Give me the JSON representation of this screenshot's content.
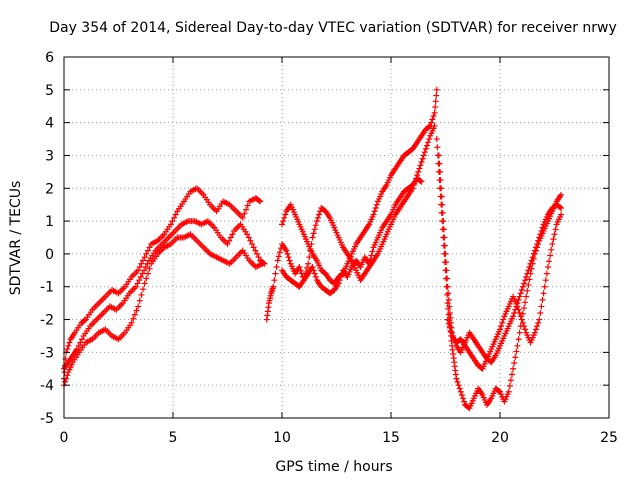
{
  "chart_data": {
    "type": "scatter",
    "title": "Day 354 of 2014, Sidereal Day-to-day VTEC variation (SDTVAR) for receiver nrwy",
    "xlabel": "GPS time / hours",
    "ylabel": "SDTVAR / TECUs",
    "xlim": [
      0,
      25
    ],
    "ylim": [
      -5,
      6
    ],
    "xticks": [
      "0",
      "5",
      "10",
      "15",
      "20",
      "25"
    ],
    "yticks": [
      "-5",
      "-4",
      "-3",
      "-2",
      "-1",
      "0",
      "1",
      "2",
      "3",
      "4",
      "5",
      "6"
    ],
    "grid": true,
    "marker": "+",
    "color": "#ff0000",
    "series": [
      {
        "points": [
          [
            0.0,
            -3.8
          ],
          [
            0.1,
            -3.0
          ],
          [
            0.3,
            -2.6
          ],
          [
            0.5,
            -2.4
          ],
          [
            0.8,
            -2.1
          ],
          [
            1.0,
            -2.0
          ],
          [
            1.3,
            -1.7
          ],
          [
            1.6,
            -1.5
          ],
          [
            1.9,
            -1.3
          ],
          [
            2.2,
            -1.1
          ],
          [
            2.5,
            -1.2
          ],
          [
            2.8,
            -1.0
          ],
          [
            3.1,
            -0.7
          ],
          [
            3.4,
            -0.5
          ],
          [
            3.7,
            -0.1
          ],
          [
            4.0,
            0.3
          ],
          [
            4.3,
            0.4
          ],
          [
            4.6,
            0.6
          ],
          [
            4.9,
            0.9
          ],
          [
            5.2,
            1.3
          ],
          [
            5.5,
            1.6
          ],
          [
            5.8,
            1.9
          ],
          [
            6.1,
            2.0
          ],
          [
            6.4,
            1.8
          ],
          [
            6.7,
            1.5
          ],
          [
            7.0,
            1.3
          ],
          [
            7.3,
            1.6
          ],
          [
            7.6,
            1.5
          ],
          [
            7.9,
            1.3
          ],
          [
            8.2,
            1.1
          ],
          [
            8.5,
            1.6
          ],
          [
            8.8,
            1.7
          ],
          [
            9.0,
            1.6
          ]
        ]
      },
      {
        "points": [
          [
            0.0,
            -3.5
          ],
          [
            0.2,
            -3.3
          ],
          [
            0.4,
            -3.1
          ],
          [
            0.6,
            -2.9
          ],
          [
            0.9,
            -2.5
          ],
          [
            1.2,
            -2.2
          ],
          [
            1.5,
            -2.0
          ],
          [
            1.8,
            -1.8
          ],
          [
            2.1,
            -1.6
          ],
          [
            2.4,
            -1.7
          ],
          [
            2.7,
            -1.5
          ],
          [
            3.0,
            -1.2
          ],
          [
            3.3,
            -1.0
          ],
          [
            3.6,
            -0.6
          ],
          [
            3.9,
            -0.2
          ],
          [
            4.2,
            0.1
          ],
          [
            4.5,
            0.3
          ],
          [
            4.8,
            0.5
          ],
          [
            5.1,
            0.7
          ],
          [
            5.4,
            0.9
          ],
          [
            5.7,
            1.0
          ],
          [
            6.0,
            1.0
          ],
          [
            6.3,
            0.9
          ],
          [
            6.6,
            1.0
          ],
          [
            6.9,
            0.8
          ],
          [
            7.2,
            0.5
          ],
          [
            7.5,
            0.3
          ],
          [
            7.8,
            0.7
          ],
          [
            8.1,
            0.9
          ],
          [
            8.4,
            0.6
          ],
          [
            8.7,
            0.2
          ],
          [
            9.0,
            -0.2
          ],
          [
            9.2,
            -0.3
          ]
        ]
      },
      {
        "points": [
          [
            0.0,
            -4.0
          ],
          [
            0.2,
            -3.6
          ],
          [
            0.4,
            -3.3
          ],
          [
            0.7,
            -3.0
          ],
          [
            1.0,
            -2.7
          ],
          [
            1.3,
            -2.6
          ],
          [
            1.6,
            -2.4
          ],
          [
            1.9,
            -2.3
          ],
          [
            2.2,
            -2.5
          ],
          [
            2.5,
            -2.6
          ],
          [
            2.8,
            -2.4
          ],
          [
            3.1,
            -2.1
          ],
          [
            3.4,
            -1.6
          ],
          [
            3.7,
            -0.9
          ],
          [
            4.0,
            -0.3
          ],
          [
            4.3,
            0.0
          ],
          [
            4.6,
            0.2
          ],
          [
            4.9,
            0.3
          ],
          [
            5.2,
            0.5
          ],
          [
            5.5,
            0.5
          ],
          [
            5.8,
            0.6
          ],
          [
            6.1,
            0.4
          ],
          [
            6.4,
            0.2
          ],
          [
            6.7,
            0.0
          ],
          [
            7.0,
            -0.1
          ],
          [
            7.3,
            -0.2
          ],
          [
            7.6,
            -0.3
          ],
          [
            7.9,
            -0.1
          ],
          [
            8.2,
            0.1
          ],
          [
            8.5,
            -0.2
          ],
          [
            8.8,
            -0.4
          ],
          [
            9.1,
            -0.3
          ]
        ]
      },
      {
        "points": [
          [
            9.3,
            -2.0
          ],
          [
            9.4,
            -1.5
          ],
          [
            9.5,
            -1.2
          ],
          [
            9.6,
            -1.0
          ],
          [
            9.8,
            -0.2
          ],
          [
            10.0,
            0.3
          ],
          [
            10.2,
            0.1
          ],
          [
            10.4,
            -0.3
          ],
          [
            10.6,
            -0.6
          ],
          [
            10.8,
            -0.4
          ],
          [
            11.0,
            -0.8
          ],
          [
            11.2,
            -0.6
          ],
          [
            11.4,
            -0.4
          ],
          [
            11.6,
            -0.8
          ],
          [
            11.8,
            -1.0
          ],
          [
            12.0,
            -1.1
          ],
          [
            12.2,
            -1.2
          ],
          [
            12.4,
            -1.1
          ],
          [
            12.6,
            -0.9
          ],
          [
            12.8,
            -0.5
          ],
          [
            13.0,
            -0.7
          ],
          [
            13.2,
            -0.4
          ],
          [
            13.4,
            -0.2
          ],
          [
            13.6,
            -0.4
          ],
          [
            13.8,
            -0.1
          ],
          [
            14.0,
            -0.3
          ],
          [
            14.2,
            0.2
          ],
          [
            14.4,
            0.5
          ],
          [
            14.6,
            0.8
          ],
          [
            14.8,
            1.0
          ],
          [
            15.0,
            1.2
          ],
          [
            15.2,
            1.5
          ],
          [
            15.4,
            1.7
          ],
          [
            15.6,
            1.9
          ],
          [
            15.8,
            2.0
          ],
          [
            16.0,
            2.1
          ],
          [
            16.2,
            2.3
          ],
          [
            16.4,
            2.2
          ]
        ]
      },
      {
        "points": [
          [
            10.0,
            0.9
          ],
          [
            10.2,
            1.3
          ],
          [
            10.4,
            1.5
          ],
          [
            10.6,
            1.2
          ],
          [
            10.8,
            0.9
          ],
          [
            11.0,
            0.6
          ],
          [
            11.2,
            0.3
          ],
          [
            11.4,
            0.0
          ],
          [
            11.6,
            -0.2
          ],
          [
            11.8,
            -0.5
          ],
          [
            12.0,
            -0.6
          ],
          [
            12.2,
            -0.8
          ],
          [
            12.4,
            -0.9
          ],
          [
            12.6,
            -0.7
          ],
          [
            12.8,
            -0.6
          ],
          [
            13.0,
            -0.3
          ],
          [
            13.2,
            0.0
          ],
          [
            13.4,
            0.3
          ],
          [
            13.6,
            0.5
          ],
          [
            13.8,
            0.7
          ],
          [
            14.0,
            0.9
          ],
          [
            14.2,
            1.2
          ],
          [
            14.4,
            1.6
          ],
          [
            14.6,
            1.9
          ],
          [
            14.8,
            2.1
          ],
          [
            15.0,
            2.4
          ],
          [
            15.2,
            2.6
          ],
          [
            15.4,
            2.8
          ],
          [
            15.6,
            3.0
          ],
          [
            15.8,
            3.1
          ],
          [
            16.0,
            3.2
          ],
          [
            16.2,
            3.4
          ],
          [
            16.4,
            3.6
          ],
          [
            16.6,
            3.8
          ],
          [
            16.8,
            3.9
          ],
          [
            17.0,
            4.3
          ],
          [
            17.1,
            5.0
          ]
        ]
      },
      {
        "points": [
          [
            10.0,
            -0.5
          ],
          [
            10.2,
            -0.7
          ],
          [
            10.4,
            -0.8
          ],
          [
            10.6,
            -0.9
          ],
          [
            10.8,
            -1.0
          ],
          [
            11.0,
            -0.8
          ],
          [
            11.2,
            -0.3
          ],
          [
            11.4,
            0.5
          ],
          [
            11.6,
            1.0
          ],
          [
            11.8,
            1.4
          ],
          [
            12.0,
            1.3
          ],
          [
            12.2,
            1.1
          ],
          [
            12.4,
            0.8
          ],
          [
            12.6,
            0.5
          ],
          [
            12.8,
            0.2
          ],
          [
            13.0,
            0.0
          ],
          [
            13.2,
            -0.2
          ],
          [
            13.4,
            -0.5
          ],
          [
            13.6,
            -0.8
          ],
          [
            13.8,
            -0.6
          ],
          [
            14.0,
            -0.4
          ],
          [
            14.2,
            -0.2
          ],
          [
            14.4,
            0.0
          ],
          [
            14.6,
            0.3
          ],
          [
            14.8,
            0.6
          ],
          [
            15.0,
            0.9
          ],
          [
            15.2,
            1.2
          ],
          [
            15.4,
            1.4
          ],
          [
            15.6,
            1.6
          ],
          [
            15.8,
            1.8
          ],
          [
            16.0,
            2.0
          ],
          [
            16.2,
            2.4
          ],
          [
            16.4,
            2.8
          ],
          [
            16.6,
            3.2
          ],
          [
            16.8,
            3.6
          ],
          [
            17.0,
            3.9
          ]
        ]
      },
      {
        "points": [
          [
            17.1,
            3.5
          ],
          [
            17.2,
            2.5
          ],
          [
            17.3,
            1.5
          ],
          [
            17.4,
            0.5
          ],
          [
            17.5,
            -0.5
          ],
          [
            17.6,
            -1.5
          ],
          [
            17.7,
            -2.2
          ],
          [
            17.8,
            -2.8
          ],
          [
            17.9,
            -3.3
          ],
          [
            18.0,
            -3.8
          ],
          [
            18.2,
            -4.2
          ],
          [
            18.4,
            -4.6
          ],
          [
            18.6,
            -4.7
          ],
          [
            18.8,
            -4.4
          ],
          [
            19.0,
            -4.1
          ],
          [
            19.2,
            -4.3
          ],
          [
            19.4,
            -4.6
          ],
          [
            19.6,
            -4.4
          ],
          [
            19.8,
            -4.1
          ],
          [
            20.0,
            -4.2
          ],
          [
            20.2,
            -4.5
          ],
          [
            20.4,
            -4.2
          ],
          [
            20.6,
            -3.5
          ],
          [
            20.8,
            -2.8
          ],
          [
            21.0,
            -2.0
          ],
          [
            21.2,
            -1.3
          ],
          [
            21.4,
            -0.6
          ],
          [
            21.6,
            0.0
          ],
          [
            21.8,
            0.4
          ],
          [
            22.0,
            0.7
          ],
          [
            22.2,
            1.0
          ],
          [
            22.4,
            1.3
          ],
          [
            22.6,
            1.6
          ],
          [
            22.8,
            1.8
          ]
        ]
      },
      {
        "points": [
          [
            17.2,
            3.0
          ],
          [
            17.3,
            2.0
          ],
          [
            17.4,
            1.0
          ],
          [
            17.5,
            0.0
          ],
          [
            17.6,
            -1.0
          ],
          [
            17.7,
            -1.8
          ],
          [
            17.8,
            -2.4
          ],
          [
            18.0,
            -2.8
          ],
          [
            18.2,
            -3.0
          ],
          [
            18.4,
            -2.7
          ],
          [
            18.6,
            -2.4
          ],
          [
            18.8,
            -2.6
          ],
          [
            19.0,
            -2.8
          ],
          [
            19.2,
            -3.0
          ],
          [
            19.4,
            -3.2
          ],
          [
            19.6,
            -3.3
          ],
          [
            19.8,
            -3.1
          ],
          [
            20.0,
            -2.8
          ],
          [
            20.2,
            -2.5
          ],
          [
            20.4,
            -2.2
          ],
          [
            20.6,
            -1.9
          ],
          [
            20.8,
            -1.5
          ],
          [
            21.0,
            -1.1
          ],
          [
            21.2,
            -0.7
          ],
          [
            21.4,
            -0.3
          ],
          [
            21.6,
            0.1
          ],
          [
            21.8,
            0.5
          ],
          [
            22.0,
            0.9
          ],
          [
            22.2,
            1.2
          ],
          [
            22.4,
            1.4
          ],
          [
            22.6,
            1.5
          ],
          [
            22.8,
            1.4
          ]
        ]
      },
      {
        "points": [
          [
            17.6,
            -2.0
          ],
          [
            17.8,
            -2.5
          ],
          [
            18.0,
            -2.7
          ],
          [
            18.2,
            -2.6
          ],
          [
            18.4,
            -2.8
          ],
          [
            18.6,
            -3.0
          ],
          [
            18.8,
            -3.2
          ],
          [
            19.0,
            -3.4
          ],
          [
            19.2,
            -3.5
          ],
          [
            19.4,
            -3.2
          ],
          [
            19.6,
            -2.9
          ],
          [
            19.8,
            -2.6
          ],
          [
            20.0,
            -2.3
          ],
          [
            20.2,
            -1.9
          ],
          [
            20.4,
            -1.6
          ],
          [
            20.6,
            -1.3
          ],
          [
            20.8,
            -1.6
          ],
          [
            21.0,
            -2.0
          ],
          [
            21.2,
            -2.4
          ],
          [
            21.4,
            -2.7
          ],
          [
            21.6,
            -2.4
          ],
          [
            21.8,
            -2.0
          ],
          [
            22.0,
            -1.2
          ],
          [
            22.2,
            -0.4
          ],
          [
            22.4,
            0.3
          ],
          [
            22.6,
            0.9
          ],
          [
            22.8,
            1.2
          ]
        ]
      }
    ]
  }
}
